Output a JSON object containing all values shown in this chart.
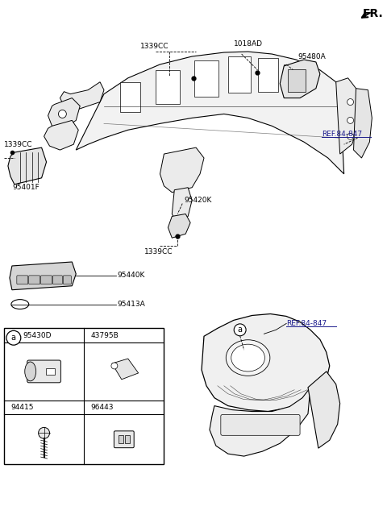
{
  "bg_color": "#ffffff",
  "text_color": "#000000",
  "labels": {
    "FR": "FR.",
    "1339CC_top": "1339CC",
    "1018AD": "1018AD",
    "95480A": "95480A",
    "REF_84_847_top": "REF.84-847",
    "1339CC_left": "1339CC",
    "95401F": "95401F",
    "95420K": "95420K",
    "1339CC_bottom": "1339CC",
    "95440K": "95440K",
    "95413A": "95413A",
    "REF_84_847_bottom": "REF.84-847",
    "95430D": "95430D",
    "43795B": "43795B",
    "94415": "94415",
    "96443": "96443"
  },
  "font_size_label": 6.5,
  "font_size_ref": 6.5,
  "font_size_fr": 10
}
